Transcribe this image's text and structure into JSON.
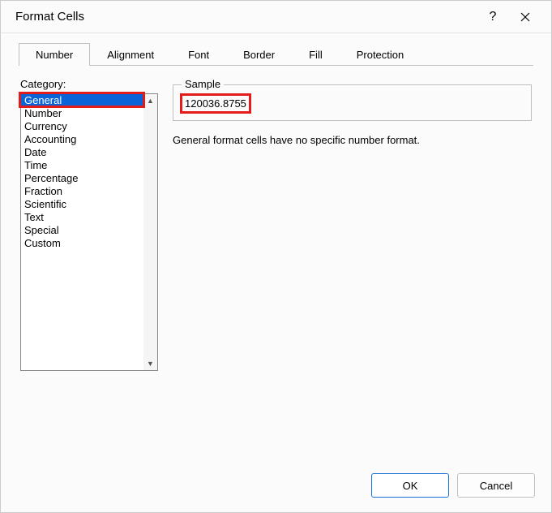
{
  "dialog": {
    "title": "Format Cells"
  },
  "tabs": [
    {
      "label": "Number",
      "active": true
    },
    {
      "label": "Alignment",
      "active": false
    },
    {
      "label": "Font",
      "active": false
    },
    {
      "label": "Border",
      "active": false
    },
    {
      "label": "Fill",
      "active": false
    },
    {
      "label": "Protection",
      "active": false
    }
  ],
  "category": {
    "label": "Category:",
    "items": [
      "General",
      "Number",
      "Currency",
      "Accounting",
      "Date",
      "Time",
      "Percentage",
      "Fraction",
      "Scientific",
      "Text",
      "Special",
      "Custom"
    ],
    "selected_index": 0
  },
  "sample": {
    "label": "Sample",
    "value": "120036.8755"
  },
  "description": "General format cells have no specific number format.",
  "buttons": {
    "ok": "OK",
    "cancel": "Cancel"
  },
  "style": {
    "highlight_color": "#e21b1b",
    "selection_bg": "#0a64d8",
    "primary_border": "#1a6fd8"
  }
}
